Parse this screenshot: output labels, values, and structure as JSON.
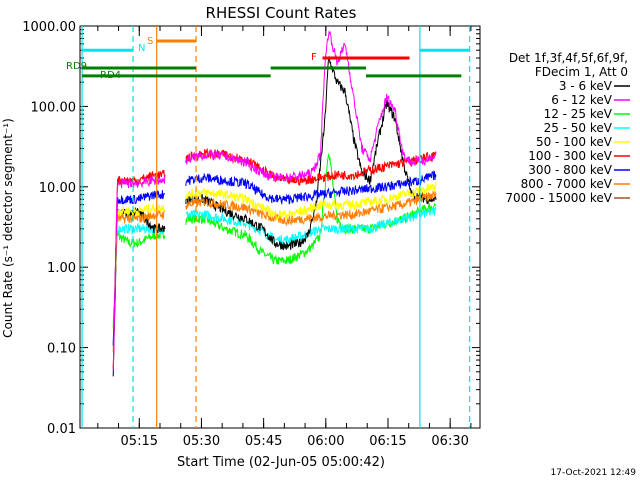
{
  "chart_data": {
    "type": "line",
    "title": "RHESSI Count Rates",
    "xlabel": "Start Time (02-Jun-05 05:00:42)",
    "ylabel": "Count Rate (s⁻¹ detector segment⁻¹)",
    "yscale": "log",
    "ylim": [
      0.01,
      1000
    ],
    "xlim_minutes": [
      0,
      96.5
    ],
    "x_ticks": [
      "05:15",
      "05:30",
      "05:45",
      "06:00",
      "06:15",
      "06:30"
    ],
    "y_ticks": [
      "0.01",
      "0.10",
      "1.00",
      "10.00",
      "100.00",
      "1000.00"
    ],
    "legend_header": [
      "Det 1f,3f,4f,5f,6f,9f,",
      "FDecim 1, Att 0"
    ],
    "series": [
      {
        "name": "3 - 6 keV",
        "color": "#000000",
        "points": [
          [
            8,
            0.05
          ],
          [
            9,
            5
          ],
          [
            12,
            4.5
          ],
          [
            14,
            5
          ],
          [
            18,
            3.0
          ],
          [
            20,
            3.0
          ],
          [
            26,
            7
          ],
          [
            30,
            7
          ],
          [
            35,
            5
          ],
          [
            40,
            4
          ],
          [
            44,
            3
          ],
          [
            47,
            2
          ],
          [
            50,
            1.8
          ],
          [
            53,
            2
          ],
          [
            55,
            2.5
          ],
          [
            57,
            6
          ],
          [
            59,
            60
          ],
          [
            60,
            400
          ],
          [
            62,
            200
          ],
          [
            64,
            150
          ],
          [
            66,
            40
          ],
          [
            68,
            15
          ],
          [
            70,
            12
          ],
          [
            72,
            40
          ],
          [
            74,
            110
          ],
          [
            76,
            70
          ],
          [
            78,
            20
          ],
          [
            80,
            8
          ],
          [
            84,
            7
          ],
          [
            86,
            7
          ]
        ]
      },
      {
        "name": "6 - 12 keV",
        "color": "#ff00ff",
        "points": [
          [
            8,
            0.05
          ],
          [
            9,
            11
          ],
          [
            12,
            11
          ],
          [
            14,
            11
          ],
          [
            18,
            12
          ],
          [
            20,
            12
          ],
          [
            26,
            22
          ],
          [
            30,
            25
          ],
          [
            35,
            24
          ],
          [
            40,
            20
          ],
          [
            44,
            15
          ],
          [
            47,
            13
          ],
          [
            50,
            13
          ],
          [
            54,
            14
          ],
          [
            56,
            15
          ],
          [
            58,
            25
          ],
          [
            59,
            300
          ],
          [
            60,
            900
          ],
          [
            62,
            350
          ],
          [
            64,
            600
          ],
          [
            66,
            130
          ],
          [
            68,
            30
          ],
          [
            70,
            22
          ],
          [
            72,
            60
          ],
          [
            74,
            130
          ],
          [
            76,
            90
          ],
          [
            78,
            25
          ],
          [
            80,
            20
          ],
          [
            84,
            22
          ],
          [
            86,
            25
          ]
        ]
      },
      {
        "name": "12 - 25 keV",
        "color": "#00ff00",
        "points": [
          [
            8,
            0.2
          ],
          [
            9,
            2.5
          ],
          [
            12,
            2
          ],
          [
            14,
            2
          ],
          [
            18,
            2.5
          ],
          [
            20,
            2.5
          ],
          [
            26,
            4
          ],
          [
            30,
            4
          ],
          [
            35,
            3
          ],
          [
            40,
            2.5
          ],
          [
            44,
            1.5
          ],
          [
            47,
            1.2
          ],
          [
            50,
            1.2
          ],
          [
            54,
            1.5
          ],
          [
            56,
            1.8
          ],
          [
            58,
            2.5
          ],
          [
            60,
            30
          ],
          [
            62,
            4
          ],
          [
            64,
            3
          ],
          [
            66,
            3
          ],
          [
            68,
            3
          ],
          [
            70,
            3
          ],
          [
            74,
            3.5
          ],
          [
            78,
            4
          ],
          [
            82,
            5
          ],
          [
            86,
            6
          ]
        ]
      },
      {
        "name": "25 - 50 keV",
        "color": "#00ffff",
        "points": [
          [
            8,
            0.1
          ],
          [
            9,
            3
          ],
          [
            12,
            3
          ],
          [
            14,
            3
          ],
          [
            18,
            3
          ],
          [
            20,
            3
          ],
          [
            26,
            4.5
          ],
          [
            30,
            4.5
          ],
          [
            35,
            4
          ],
          [
            40,
            3.5
          ],
          [
            44,
            2.8
          ],
          [
            47,
            2.2
          ],
          [
            50,
            2.2
          ],
          [
            54,
            2.5
          ],
          [
            58,
            3
          ],
          [
            62,
            3
          ],
          [
            66,
            3
          ],
          [
            70,
            3
          ],
          [
            74,
            3.5
          ],
          [
            78,
            4
          ],
          [
            82,
            4.5
          ],
          [
            86,
            5
          ]
        ]
      },
      {
        "name": "50 - 100 keV",
        "color": "#ffff00",
        "points": [
          [
            8,
            0.15
          ],
          [
            9,
            5
          ],
          [
            12,
            5
          ],
          [
            14,
            5
          ],
          [
            18,
            5.5
          ],
          [
            20,
            5.5
          ],
          [
            26,
            8
          ],
          [
            30,
            8.5
          ],
          [
            35,
            8
          ],
          [
            40,
            7
          ],
          [
            44,
            5.5
          ],
          [
            47,
            4.5
          ],
          [
            50,
            4.5
          ],
          [
            54,
            5
          ],
          [
            58,
            6
          ],
          [
            62,
            6
          ],
          [
            66,
            6
          ],
          [
            70,
            6.5
          ],
          [
            74,
            7
          ],
          [
            78,
            8
          ],
          [
            82,
            9
          ],
          [
            86,
            10
          ]
        ]
      },
      {
        "name": "100 - 300 keV",
        "color": "#ff0000",
        "points": [
          [
            8,
            0.05
          ],
          [
            9,
            12
          ],
          [
            12,
            12
          ],
          [
            14,
            12
          ],
          [
            18,
            14
          ],
          [
            20,
            14
          ],
          [
            26,
            23
          ],
          [
            30,
            26
          ],
          [
            35,
            25
          ],
          [
            40,
            22
          ],
          [
            44,
            16
          ],
          [
            47,
            13
          ],
          [
            50,
            12
          ],
          [
            54,
            12
          ],
          [
            58,
            13
          ],
          [
            62,
            14
          ],
          [
            66,
            14
          ],
          [
            70,
            16
          ],
          [
            74,
            18
          ],
          [
            78,
            20
          ],
          [
            82,
            22
          ],
          [
            86,
            25
          ]
        ]
      },
      {
        "name": "300 - 800 keV",
        "color": "#0000ff",
        "points": [
          [
            8,
            0.1
          ],
          [
            9,
            7
          ],
          [
            12,
            7
          ],
          [
            14,
            7
          ],
          [
            18,
            8
          ],
          [
            20,
            8
          ],
          [
            26,
            12
          ],
          [
            30,
            13
          ],
          [
            35,
            12
          ],
          [
            40,
            11
          ],
          [
            44,
            8
          ],
          [
            47,
            7
          ],
          [
            50,
            7
          ],
          [
            54,
            7.5
          ],
          [
            58,
            8
          ],
          [
            62,
            8.5
          ],
          [
            66,
            9
          ],
          [
            70,
            9.5
          ],
          [
            74,
            10
          ],
          [
            78,
            11
          ],
          [
            82,
            12
          ],
          [
            86,
            14
          ]
        ]
      },
      {
        "name": "800 - 7000 keV",
        "color": "#ff8000",
        "points": [
          [
            8,
            0.1
          ],
          [
            9,
            4
          ],
          [
            12,
            4
          ],
          [
            14,
            4
          ],
          [
            18,
            4.5
          ],
          [
            20,
            4.5
          ],
          [
            26,
            6
          ],
          [
            30,
            6.5
          ],
          [
            35,
            6
          ],
          [
            40,
            5.5
          ],
          [
            44,
            4.5
          ],
          [
            47,
            4
          ],
          [
            50,
            3.8
          ],
          [
            54,
            4
          ],
          [
            58,
            4.2
          ],
          [
            62,
            4.5
          ],
          [
            66,
            4.5
          ],
          [
            70,
            5
          ],
          [
            74,
            5.5
          ],
          [
            78,
            6
          ],
          [
            82,
            7
          ],
          [
            86,
            8
          ]
        ]
      },
      {
        "name": "7000 - 15000 keV",
        "color": "#a0522d",
        "points": []
      }
    ],
    "vlines": [
      {
        "x": 0.5,
        "color": "#00e5e5",
        "style": "solid"
      },
      {
        "x": 12.8,
        "color": "#00e5e5",
        "style": "dashed"
      },
      {
        "x": 18.5,
        "color": "#ff8000",
        "style": "solid"
      },
      {
        "x": 28.0,
        "color": "#ff8000",
        "style": "dashed"
      },
      {
        "x": 82.0,
        "color": "#00e5e5",
        "style": "solid"
      },
      {
        "x": 94.0,
        "color": "#00e5e5",
        "style": "dashed"
      }
    ],
    "flags": [
      {
        "label": "N",
        "color": "#00e5e5",
        "y": 500,
        "segments": [
          [
            0.5,
            12.8
          ],
          [
            82.0,
            94.0
          ]
        ]
      },
      {
        "label": "S",
        "color": "#ff8000",
        "y": 650,
        "segments": [
          [
            18.5,
            28.0
          ]
        ]
      },
      {
        "label": "F",
        "color": "#ff0000",
        "y": 400,
        "segments": [
          [
            58.5,
            79.5
          ]
        ]
      },
      {
        "label": "RD9",
        "color": "#008000",
        "y": 300,
        "segments": [
          [
            0.5,
            28.0
          ],
          [
            46.0,
            69.0
          ]
        ]
      },
      {
        "label": "RD4",
        "color": "#008000",
        "y": 240,
        "segments": [
          [
            0.5,
            28.0
          ],
          [
            28.0,
            46.0
          ],
          [
            69.0,
            92.0
          ]
        ]
      }
    ]
  },
  "footer": {
    "date": "17-Oct-2021 12:49"
  }
}
